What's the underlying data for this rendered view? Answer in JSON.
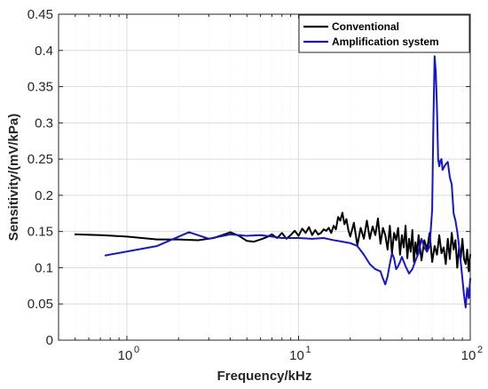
{
  "chart_data": {
    "type": "line",
    "xscale": "log",
    "xlim": [
      0.4,
      100
    ],
    "ylim": [
      0,
      0.45
    ],
    "xlabel": "Frequency/kHz",
    "ylabel": "Sensitivity/(mV/kPa)",
    "grid": true,
    "legend_position": "top-right",
    "x_ticks": [
      {
        "value": 1,
        "label": "10",
        "exp": "0"
      },
      {
        "value": 10,
        "label": "10",
        "exp": "1"
      },
      {
        "value": 100,
        "label": "10",
        "exp": "2"
      }
    ],
    "y_ticks": [
      {
        "value": 0,
        "label": "0"
      },
      {
        "value": 0.05,
        "label": "0.05"
      },
      {
        "value": 0.1,
        "label": "0.1"
      },
      {
        "value": 0.15,
        "label": "0.15"
      },
      {
        "value": 0.2,
        "label": "0.2"
      },
      {
        "value": 0.25,
        "label": "0.25"
      },
      {
        "value": 0.3,
        "label": "0.3"
      },
      {
        "value": 0.35,
        "label": "0.35"
      },
      {
        "value": 0.4,
        "label": "0.4"
      },
      {
        "value": 0.45,
        "label": "0.45"
      }
    ],
    "series": [
      {
        "name": "Conventional",
        "color": "#000000",
        "x": [
          0.5,
          0.7,
          1.0,
          1.5,
          2.0,
          2.6,
          3.2,
          3.6,
          4.0,
          4.5,
          5.0,
          5.5,
          6.0,
          6.5,
          7.0,
          7.5,
          8.0,
          8.5,
          9.0,
          9.5,
          10.0,
          10.5,
          11.0,
          11.5,
          12.0,
          12.5,
          13.0,
          13.5,
          14.0,
          14.5,
          15.0,
          15.5,
          16.0,
          16.5,
          17.0,
          17.5,
          18.0,
          18.5,
          19.0,
          19.5,
          20.0,
          21.0,
          22.0,
          23.0,
          24.0,
          25.0,
          26.0,
          27.0,
          28.0,
          29.0,
          30.0,
          31.0,
          32.0,
          33.0,
          34.0,
          35.0,
          36.0,
          37.0,
          38.0,
          39.0,
          40.0,
          41.0,
          42.0,
          43.0,
          44.0,
          45.0,
          46.0,
          47.0,
          48.0,
          49.0,
          50.0,
          52.0,
          54.0,
          56.0,
          58.0,
          60.0,
          62.0,
          64.0,
          66.0,
          68.0,
          70.0,
          72.0,
          74.0,
          76.0,
          78.0,
          80.0,
          82.0,
          84.0,
          86.0,
          88.0,
          90.0,
          92.0,
          94.0,
          96.0,
          98.0,
          100.0
        ],
        "y": [
          0.146,
          0.145,
          0.143,
          0.139,
          0.139,
          0.138,
          0.141,
          0.145,
          0.149,
          0.144,
          0.137,
          0.136,
          0.139,
          0.142,
          0.146,
          0.141,
          0.148,
          0.14,
          0.145,
          0.151,
          0.144,
          0.154,
          0.148,
          0.156,
          0.145,
          0.152,
          0.146,
          0.148,
          0.153,
          0.151,
          0.155,
          0.148,
          0.158,
          0.153,
          0.17,
          0.165,
          0.176,
          0.16,
          0.167,
          0.152,
          0.143,
          0.162,
          0.131,
          0.155,
          0.14,
          0.165,
          0.14,
          0.157,
          0.145,
          0.168,
          0.133,
          0.155,
          0.145,
          0.125,
          0.158,
          0.12,
          0.148,
          0.138,
          0.155,
          0.118,
          0.145,
          0.128,
          0.158,
          0.113,
          0.14,
          0.122,
          0.152,
          0.108,
          0.135,
          0.118,
          0.145,
          0.11,
          0.138,
          0.125,
          0.148,
          0.108,
          0.13,
          0.118,
          0.145,
          0.12,
          0.128,
          0.105,
          0.14,
          0.112,
          0.148,
          0.125,
          0.138,
          0.1,
          0.128,
          0.113,
          0.14,
          0.112,
          0.105,
          0.125,
          0.095,
          0.118
        ]
      },
      {
        "name": "Amplification system",
        "color": "#1414d8",
        "x": [
          0.75,
          1.5,
          2.3,
          3.0,
          4.0,
          5.0,
          6.0,
          7.0,
          8.0,
          9.0,
          10.0,
          12.0,
          14.0,
          16.0,
          18.0,
          20.0,
          22.0,
          24.0,
          26.0,
          28.0,
          30.0,
          31.0,
          32.0,
          33.0,
          34.0,
          35.0,
          36.0,
          37.0,
          38.0,
          39.0,
          40.0,
          42.0,
          44.0,
          46.0,
          48.0,
          50.0,
          52.0,
          54.0,
          56.0,
          58.0,
          60.0,
          61.0,
          62.0,
          63.0,
          64.0,
          65.0,
          66.0,
          67.0,
          68.0,
          69.0,
          70.0,
          72.0,
          74.0,
          76.0,
          78.0,
          80.0,
          82.0,
          84.0,
          86.0,
          88.0,
          90.0,
          92.0,
          94.0,
          96.0,
          98.0,
          100.0
        ],
        "y": [
          0.117,
          0.13,
          0.149,
          0.14,
          0.146,
          0.144,
          0.145,
          0.143,
          0.141,
          0.141,
          0.141,
          0.14,
          0.141,
          0.138,
          0.136,
          0.134,
          0.13,
          0.118,
          0.105,
          0.098,
          0.095,
          0.085,
          0.077,
          0.088,
          0.105,
          0.12,
          0.113,
          0.098,
          0.102,
          0.108,
          0.115,
          0.102,
          0.092,
          0.098,
          0.11,
          0.12,
          0.14,
          0.128,
          0.122,
          0.13,
          0.18,
          0.3,
          0.392,
          0.37,
          0.32,
          0.25,
          0.24,
          0.248,
          0.25,
          0.235,
          0.238,
          0.243,
          0.246,
          0.225,
          0.215,
          0.175,
          0.165,
          0.15,
          0.13,
          0.108,
          0.085,
          0.062,
          0.045,
          0.072,
          0.058,
          0.085
        ]
      }
    ]
  }
}
